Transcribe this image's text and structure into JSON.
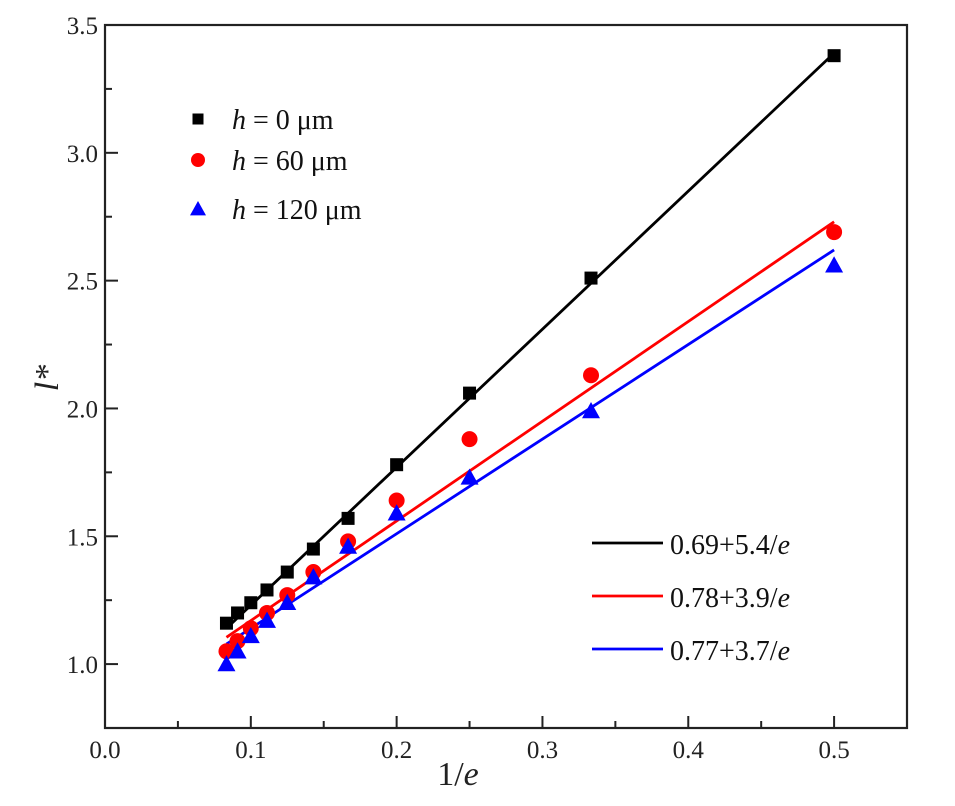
{
  "chart_data": {
    "type": "scatter",
    "title": "",
    "xlabel": "1/e",
    "ylabel": "l*",
    "xlim": [
      0.0,
      0.55
    ],
    "ylim": [
      0.75,
      3.5
    ],
    "x_ticks": [
      0.0,
      0.1,
      0.2,
      0.3,
      0.4,
      0.5
    ],
    "x_tick_labels": [
      "0.0",
      "0.1",
      "0.2",
      "0.3",
      "0.4",
      "0.5"
    ],
    "x_minor_ticks": [
      0.05,
      0.15,
      0.25,
      0.35,
      0.45
    ],
    "y_ticks": [
      1.0,
      1.5,
      2.0,
      2.5,
      3.0,
      3.5
    ],
    "y_tick_labels": [
      "1.0",
      "1.5",
      "2.0",
      "2.5",
      "3.0",
      "3.5"
    ],
    "y_minor_ticks": [
      1.25,
      1.75,
      2.25,
      2.75,
      3.25
    ],
    "grid": false,
    "x": [
      0.0833,
      0.0909,
      0.1,
      0.1111,
      0.125,
      0.1429,
      0.1667,
      0.2,
      0.25,
      0.3333,
      0.5
    ],
    "series": [
      {
        "name": "h = 0 μm",
        "h_value": "0",
        "marker": "square",
        "color": "#000000",
        "values": [
          1.16,
          1.2,
          1.24,
          1.29,
          1.36,
          1.45,
          1.57,
          1.78,
          2.06,
          2.51,
          3.38
        ]
      },
      {
        "name": "h = 60 μm",
        "h_value": "60",
        "marker": "circle",
        "color": "#ff0000",
        "values": [
          1.05,
          1.09,
          1.14,
          1.2,
          1.27,
          1.36,
          1.48,
          1.64,
          1.88,
          2.13,
          2.69
        ]
      },
      {
        "name": "h = 120 μm",
        "h_value": "120",
        "marker": "triangle",
        "color": "#0000ff",
        "values": [
          1.0,
          1.05,
          1.11,
          1.17,
          1.24,
          1.34,
          1.46,
          1.59,
          1.73,
          1.99,
          2.56
        ]
      }
    ],
    "fits": [
      {
        "label_prefix": "0.69+5.4/",
        "label_var": "e",
        "intercept": 0.69,
        "slope": 5.4,
        "color": "#000000",
        "x_range": [
          0.0833,
          0.5
        ]
      },
      {
        "label_prefix": "0.78+3.9/",
        "label_var": "e",
        "intercept": 0.78,
        "slope": 3.9,
        "color": "#ff0000",
        "x_range": [
          0.0833,
          0.5
        ]
      },
      {
        "label_prefix": "0.77+3.7/",
        "label_var": "e",
        "intercept": 0.77,
        "slope": 3.7,
        "color": "#0000ff",
        "x_range": [
          0.0833,
          0.5
        ]
      }
    ],
    "legend_markers_placement": "top-left",
    "legend_fits_placement": "bottom-right",
    "legend_markers": [
      {
        "var": "h",
        "rest": " = 0 μm"
      },
      {
        "var": "h",
        "rest": " = 60 μm"
      },
      {
        "var": "h",
        "rest": " = 120 μm"
      }
    ]
  }
}
